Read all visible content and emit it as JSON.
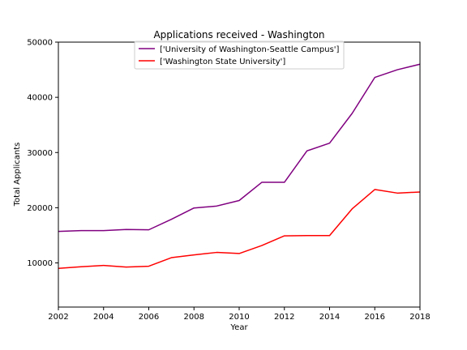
{
  "chart_data": {
    "type": "line",
    "title": "Applications received - Washington",
    "xlabel": "Year",
    "ylabel": "Total Applicants",
    "xlim": [
      2002,
      2018
    ],
    "ylim": [
      2000,
      50000
    ],
    "x_ticks": [
      2002,
      2004,
      2006,
      2008,
      2010,
      2012,
      2014,
      2016,
      2018
    ],
    "y_ticks": [
      10000,
      20000,
      30000,
      40000,
      50000
    ],
    "grid": false,
    "legend_position": "upper-center",
    "x": [
      2002,
      2003,
      2004,
      2005,
      2006,
      2007,
      2008,
      2009,
      2010,
      2011,
      2012,
      2013,
      2014,
      2015,
      2016,
      2017,
      2018
    ],
    "series": [
      {
        "name": "['University of Washington-Seattle Campus']",
        "color": "#800080",
        "values": [
          15700,
          15850,
          15850,
          16050,
          16000,
          17900,
          19950,
          20300,
          21300,
          24600,
          24600,
          30300,
          31700,
          37100,
          43600,
          45000,
          46000
        ]
      },
      {
        "name": "['Washington State University']",
        "color": "#ff0000",
        "values": [
          9000,
          9300,
          9550,
          9250,
          9400,
          10950,
          11450,
          11900,
          11700,
          13150,
          14900,
          14950,
          14950,
          19800,
          23300,
          22650,
          22850
        ]
      }
    ]
  }
}
